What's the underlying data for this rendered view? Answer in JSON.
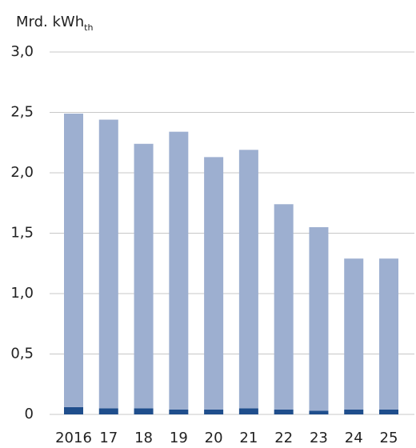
{
  "chart_data": {
    "type": "stacked_bar",
    "ylabel": "Mrd. kWh",
    "ylabel_sub": "th",
    "categories": [
      "2016",
      "17",
      "18",
      "19",
      "20",
      "21",
      "22",
      "23",
      "24",
      "25"
    ],
    "series": [
      {
        "color": "#1f4e8c",
        "values": [
          0.06,
          0.05,
          0.05,
          0.04,
          0.04,
          0.05,
          0.04,
          0.03,
          0.04,
          0.04
        ]
      },
      {
        "color": "#9dafd0",
        "values": [
          2.43,
          2.39,
          2.19,
          2.3,
          2.09,
          2.14,
          1.7,
          1.52,
          1.25,
          1.25
        ]
      }
    ],
    "ylim": [
      0,
      3
    ],
    "yticks": [
      0,
      {
        "value": 0.5,
        "label": "0,5"
      },
      {
        "value": 1,
        "label": "1,0"
      },
      {
        "value": 1.5,
        "label": "1,5"
      },
      {
        "value": 2,
        "label": "2,0"
      },
      {
        "value": 2.5,
        "label": "2,5"
      },
      {
        "value": 3,
        "label": "3,0"
      }
    ],
    "grid": true
  }
}
